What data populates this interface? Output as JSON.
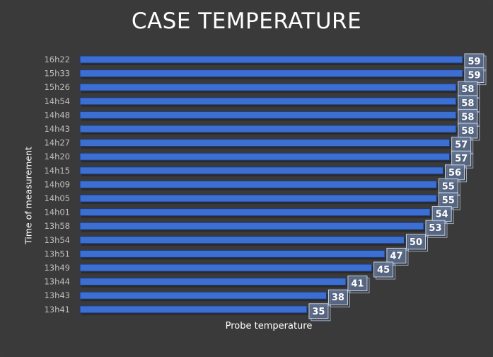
{
  "chart_data": {
    "type": "bar",
    "orientation": "horizontal",
    "title": "CASE TEMPERATURE",
    "xlabel": "Probe temperature",
    "ylabel": "Time of measurement",
    "categories": [
      "16h22",
      "15h33",
      "15h26",
      "14h54",
      "14h48",
      "14h43",
      "14h27",
      "14h20",
      "14h15",
      "14h09",
      "14h05",
      "14h01",
      "13h58",
      "13h54",
      "13h51",
      "13h49",
      "13h44",
      "13h43",
      "13h41"
    ],
    "series": [
      {
        "values": [
          59,
          59,
          58,
          58,
          58,
          58,
          57,
          57,
          56,
          55,
          55,
          54,
          53,
          50,
          47,
          45,
          41,
          38,
          35
        ]
      }
    ],
    "xlim": [
      0,
      59
    ],
    "grid": false,
    "legend": "none",
    "colors": {
      "bar": "#3c6fd1",
      "bar_edge": "#1d3a78",
      "label_box": "#5c6f8e",
      "background": "#3a3a3a"
    }
  }
}
